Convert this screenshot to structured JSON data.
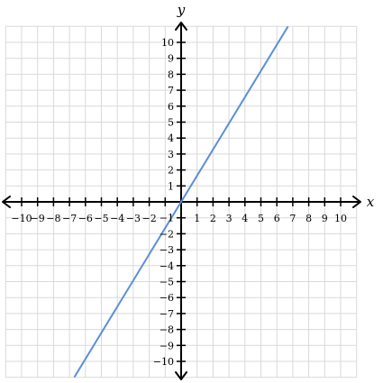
{
  "chart_data": {
    "type": "line",
    "title": "",
    "xlabel": "x",
    "ylabel": "y",
    "xlim": [
      -10,
      10
    ],
    "ylim": [
      -10,
      10
    ],
    "grid": true,
    "x_ticks": [
      -10,
      -9,
      -8,
      -7,
      -6,
      -5,
      -4,
      -3,
      -2,
      -1,
      1,
      2,
      3,
      4,
      5,
      6,
      7,
      8,
      9,
      10
    ],
    "y_ticks": [
      -10,
      -9,
      -8,
      -7,
      -6,
      -5,
      -4,
      -3,
      -2,
      -1,
      1,
      2,
      3,
      4,
      5,
      6,
      7,
      8,
      9,
      10
    ],
    "x_tick_labels": [
      "−10",
      "−9",
      "−8",
      "−7",
      "−6",
      "−5",
      "−4",
      "−3",
      "−2",
      "1",
      "2",
      "3",
      "4",
      "5",
      "6",
      "7",
      "8",
      "9",
      "10"
    ],
    "x_tick_label_values": [
      -10,
      -9,
      -8,
      -7,
      -6,
      -5,
      -4,
      -3,
      -2,
      1,
      2,
      3,
      4,
      5,
      6,
      7,
      8,
      9,
      10
    ],
    "y_tick_labels": [
      "10",
      "9",
      "8",
      "7",
      "6",
      "5",
      "4",
      "3",
      "2",
      "1",
      "−1",
      "−2",
      "−3",
      "−4",
      "−5",
      "−6",
      "−7",
      "−8",
      "−9",
      "−10"
    ],
    "y_tick_label_values": [
      10,
      9,
      8,
      7,
      6,
      5,
      4,
      3,
      2,
      1,
      -1,
      -2,
      -3,
      -4,
      -5,
      -6,
      -7,
      -8,
      -9,
      -10
    ],
    "series": [
      {
        "x": [
          -6.7,
          6.7
        ],
        "y": [
          -11,
          11
        ],
        "color": "#5b8fd9"
      }
    ]
  },
  "colors": {
    "grid": "#d9d9d9",
    "axis": "#000000",
    "line": "#5b8fd9"
  }
}
